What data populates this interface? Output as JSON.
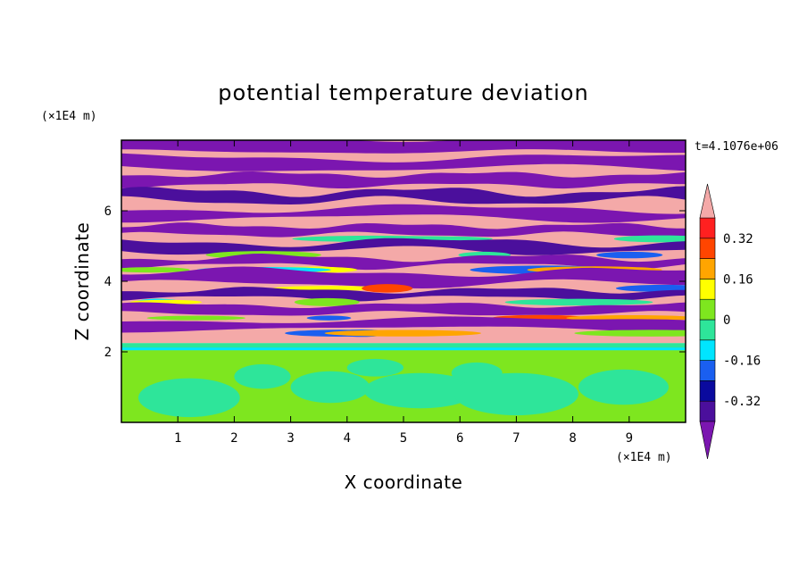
{
  "chart_data": {
    "type": "heatmap",
    "title": "potential temperature deviation",
    "xlabel": "X coordinate",
    "ylabel": "Z coordinate",
    "x_unit": "(×1E4 m)",
    "z_unit": "(×1E4 m)",
    "time_label": "t=4.1076e+06",
    "xlim": [
      0,
      10
    ],
    "ylim": [
      0,
      8
    ],
    "xticks": [
      "1",
      "2",
      "3",
      "4",
      "5",
      "6",
      "7",
      "8",
      "9"
    ],
    "yticks": [
      "2",
      "4",
      "6"
    ],
    "colorbar": {
      "levels": [
        -0.4,
        -0.32,
        -0.24,
        -0.16,
        -0.08,
        0,
        0.08,
        0.16,
        0.24,
        0.32,
        0.4
      ],
      "labels": [
        "-0.32",
        "-0.16",
        "0",
        "0.16",
        "0.32"
      ],
      "label_values": [
        -0.32,
        -0.16,
        0,
        0.16,
        0.32
      ],
      "colors": [
        "#7b16b0",
        "#4b0f9c",
        "#0a0a9e",
        "#1a5ff0",
        "#00e5ff",
        "#2ee59a",
        "#7ee61f",
        "#ffff00",
        "#ffa500",
        "#ff4500",
        "#ff2020",
        "#f4a9a8"
      ],
      "under_color": "#7b16b0",
      "over_color": "#f4a9a8"
    },
    "background_colors": {
      "lower_layer": "#7ee61f",
      "lower_blobs": "#2ee59a",
      "upper_band_pink": "#f4a9a8",
      "upper_band_purple": "#7b16b0"
    }
  }
}
